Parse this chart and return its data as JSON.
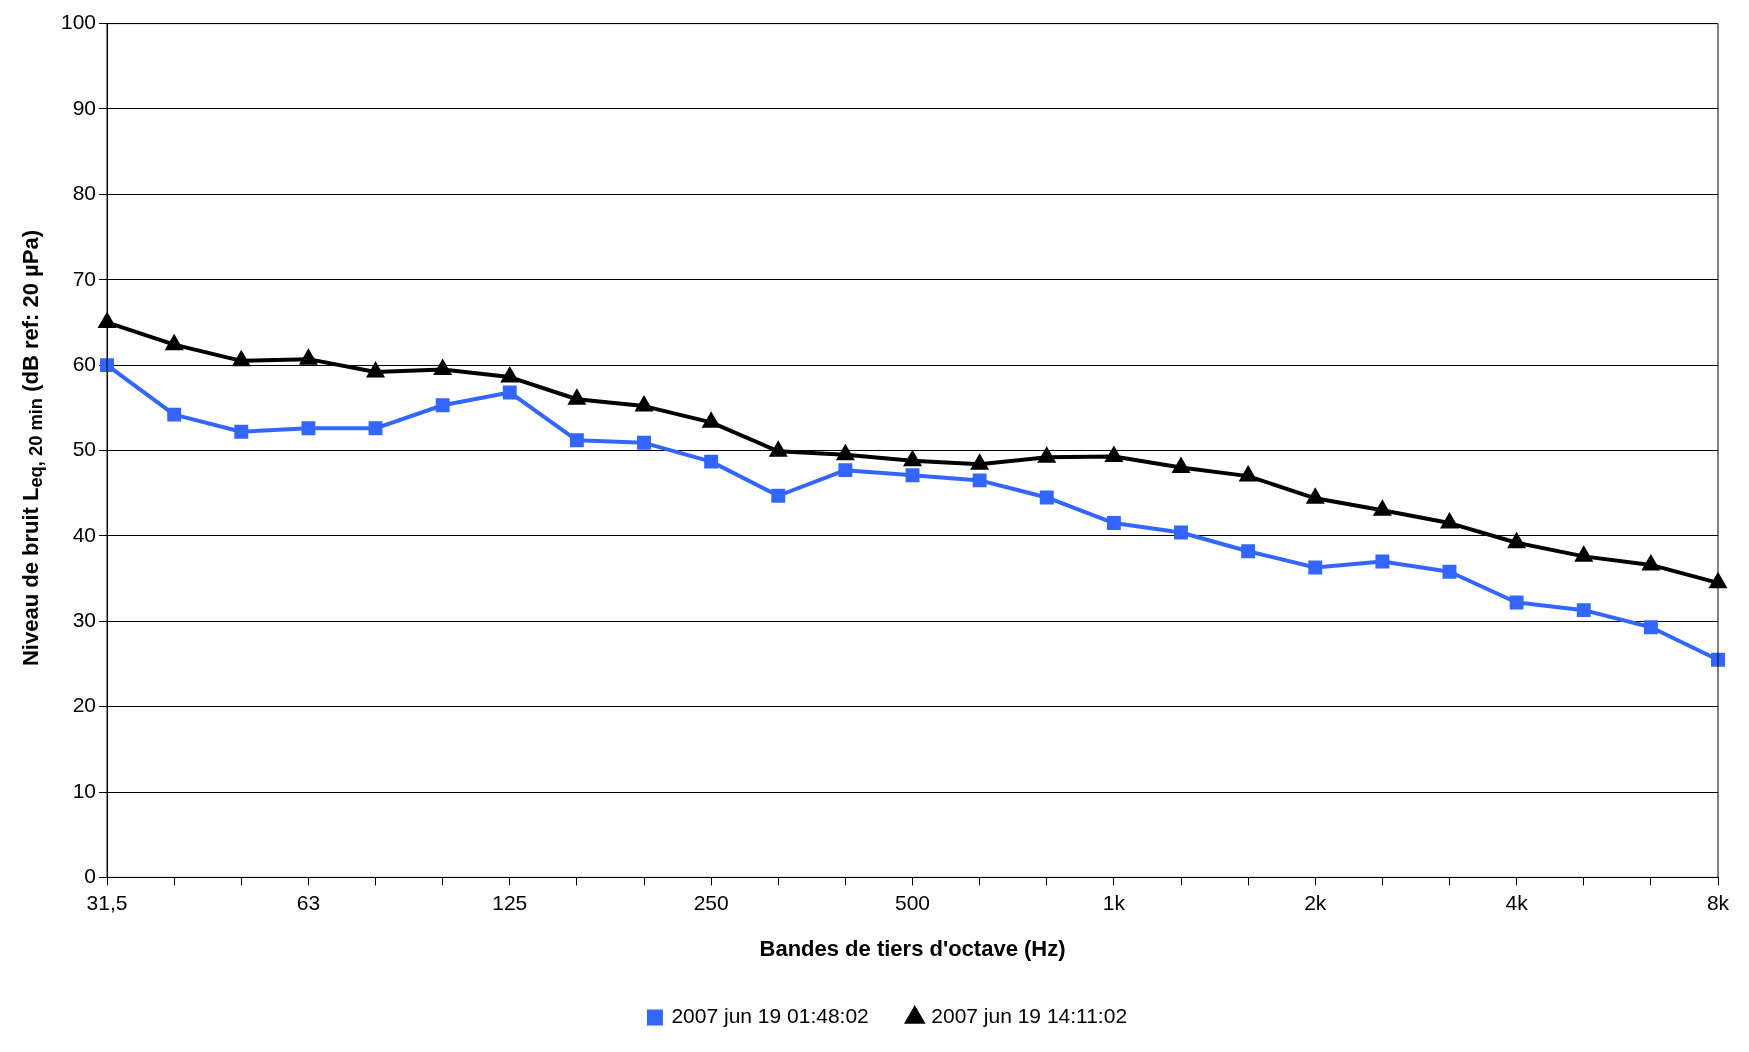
{
  "chart_data": {
    "type": "line",
    "xlabel": "Bandes de tiers d'octave (Hz)",
    "ylabel": "Niveau de bruit L$_{eq, 20 min}$ (dB ref: 20 µPa)",
    "categories": [
      "31,5",
      null,
      null,
      "63",
      null,
      null,
      "125",
      null,
      null,
      "250",
      null,
      null,
      "500",
      null,
      null,
      "1k",
      null,
      null,
      "2k",
      null,
      null,
      "4k",
      null,
      null,
      "8k"
    ],
    "series": [
      {
        "name": "2007 jun 19 01:48:02",
        "color": "#3366ff",
        "marker": "square",
        "values": [
          60.0,
          54.2,
          52.2,
          52.6,
          52.6,
          55.3,
          56.8,
          51.2,
          50.9,
          48.7,
          44.7,
          47.7,
          47.1,
          46.5,
          44.5,
          41.5,
          40.4,
          38.2,
          36.3,
          37.0,
          35.8,
          32.2,
          31.3,
          29.3,
          25.5
        ]
      },
      {
        "name": "2007 jun 19 14:11:02",
        "color": "#000000",
        "marker": "triangle",
        "values": [
          65.0,
          62.4,
          60.5,
          60.7,
          59.2,
          59.5,
          58.6,
          56.0,
          55.2,
          53.3,
          49.9,
          49.5,
          48.8,
          48.4,
          49.2,
          49.3,
          48.0,
          47.0,
          44.4,
          43.0,
          41.5,
          39.2,
          37.6,
          36.6,
          34.5
        ]
      }
    ],
    "ylim": [
      0,
      100
    ],
    "yticks": [
      0,
      10,
      20,
      30,
      40,
      50,
      60,
      70,
      80,
      90,
      100
    ],
    "grid": "y",
    "legend": "bottom",
    "line_style": "solid"
  }
}
